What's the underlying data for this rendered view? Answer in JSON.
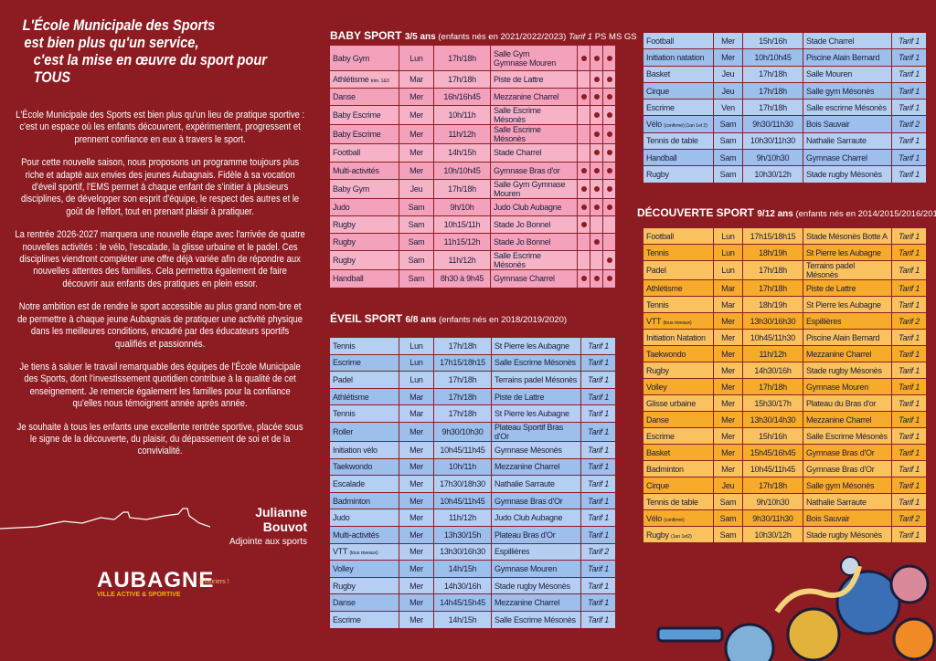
{
  "intro": {
    "title": [
      "L'École Municipale des Sports",
      "est bien plus qu'un service,",
      "c'est la mise en œuvre du sport pour TOUS"
    ],
    "paragraphs": [
      "L'École Municipale des Sports est bien plus qu'un lieu de pratique sportive : c'est un espace où les enfants découvrent, expérimentent, progressent et prennent confiance en eux à travers le sport.",
      "Pour cette nouvelle saison, nous proposons un programme toujours plus riche et adapté aux envies des jeunes Aubagnais. Fidèle à sa vocation d'éveil sportif, l'EMS permet à chaque enfant de s'initier à plusieurs disciplines, de développer son esprit d'équipe, le respect des autres et le goût de l'effort, tout en prenant plaisir à pratiquer.",
      "La rentrée 2026-2027 marquera une nouvelle étape avec l'arrivée de quatre nouvelles activités : le vélo, l'escalade, la glisse urbaine et le padel. Ces disciplines viendront compléter une offre déjà variée afin de répondre aux nouvelles attentes des familles. Cela permettra également de faire découvrir aux enfants des pratiques en plein essor.",
      "Notre ambition est de rendre le sport accessible au plus grand nom-bre et de permettre à chaque jeune Aubagnais de pratiquer une activité physique dans les meilleures conditions, encadré par des éducateurs sportifs qualifiés et passionnés.",
      "Je tiens à saluer le travail remarquable des équipes de l'École Municipale des Sports, dont l'investissement quotidien contribue à la qualité de cet enseignement. Je remercie également les familles pour la confiance qu'elles nous témoignent année après année.",
      "Je souhaite à tous les enfants une excellente rentrée sportive, placée sous le signe de la découverte, du plaisir, du dépassement de soi et de la convivialité."
    ],
    "signature": "Julianne Bouvot",
    "role": "Adjointe aux sports",
    "logo": {
      "name": "AUBAGNE",
      "tagline": "VILLE ACTIVE & SPORTIVE",
      "award": "3 lauriers !"
    }
  },
  "baby_sport": {
    "name": "BABY SPORT",
    "ages": "3/5 ans",
    "birth_years": "(enfants nés en 2021/2022/2023)",
    "tarif": "Tarif 1",
    "levels": [
      "PS",
      "MS",
      "GS"
    ],
    "rows": [
      {
        "activity": "Baby Gym",
        "day": "Lun",
        "time": "17h/18h",
        "place": "Salle Gym\nGymnase Mouren",
        "groups": [
          true,
          true,
          true
        ]
      },
      {
        "activity": "Athlétisme",
        "note": "trim. 1&3",
        "day": "Mar",
        "time": "17h/18h",
        "place": "Piste de Lattre",
        "groups": [
          false,
          true,
          true
        ]
      },
      {
        "activity": "Danse",
        "day": "Mer",
        "time": "16h/16h45",
        "place": "Mezzanine Charrel",
        "groups": [
          true,
          true,
          true
        ]
      },
      {
        "activity": "Baby Escrime",
        "day": "Mer",
        "time": "10h/11h",
        "place": "Salle Escrime Mésonès",
        "groups": [
          false,
          true,
          true
        ]
      },
      {
        "activity": "Baby Escrime",
        "day": "Mer",
        "time": "11h/12h",
        "place": "Salle Escrime Mésonès",
        "groups": [
          false,
          true,
          true
        ]
      },
      {
        "activity": "Football",
        "day": "Mer",
        "time": "14h/15h",
        "place": "Stade Charrel",
        "groups": [
          false,
          true,
          true
        ]
      },
      {
        "activity": "Multi-activités",
        "day": "Mer",
        "time": "10h/10h45",
        "place": "Gymnase Bras d'or",
        "groups": [
          true,
          true,
          true
        ]
      },
      {
        "activity": "Baby Gym",
        "day": "Jeu",
        "time": "17h/18h",
        "place": "Salle Gym Gymnase Mouren",
        "groups": [
          true,
          true,
          true
        ]
      },
      {
        "activity": "Judo",
        "day": "Sam",
        "time": "9h/10h",
        "place": "Judo Club Aubagne",
        "groups": [
          true,
          true,
          true
        ]
      },
      {
        "activity": "Rugby",
        "day": "Sam",
        "time": "10h15/11h",
        "place": "Stade Jo Bonnel",
        "groups": [
          true,
          false,
          false
        ]
      },
      {
        "activity": "Rugby",
        "day": "Sam",
        "time": "11h15/12h",
        "place": "Stade Jo Bonnel",
        "groups": [
          false,
          true,
          false
        ]
      },
      {
        "activity": "Rugby",
        "day": "Sam",
        "time": "11h/12h",
        "place": "Salle Escrime Mésonès",
        "groups": [
          false,
          false,
          true
        ]
      },
      {
        "activity": "Handball",
        "day": "Sam",
        "time": "8h30 à 9h45",
        "place": "Gymnase Charrel",
        "groups": [
          true,
          true,
          true
        ]
      }
    ]
  },
  "eveil_sport": {
    "name": "ÉVEIL SPORT",
    "ages": "6/8 ans",
    "birth_years": "(enfants nés en 2018/2019/2020)",
    "rows": [
      {
        "activity": "Tennis",
        "day": "Lun",
        "time": "17h/18h",
        "place": "St Pierre les Aubagne",
        "tarif": "Tarif 1"
      },
      {
        "activity": "Escrime",
        "day": "Lun",
        "time": "17h15/18h15",
        "place": "Salle Escrime Mésonès",
        "tarif": "Tarif 1"
      },
      {
        "activity": "Padel",
        "day": "Lun",
        "time": "17h/18h",
        "place": "Terrains padel Mésonès",
        "tarif": "Tarif 1"
      },
      {
        "activity": "Athlétisme",
        "day": "Mar",
        "time": "17h/18h",
        "place": "Piste de Lattre",
        "tarif": "Tarif 1"
      },
      {
        "activity": "Tennis",
        "day": "Mar",
        "time": "17h/18h",
        "place": "St Pierre les Aubagne",
        "tarif": "Tarif 1"
      },
      {
        "activity": "Roller",
        "day": "Mer",
        "time": "9h30/10h30",
        "place": "Plateau Sportif Bras d'Or",
        "tarif": "Tarif 1"
      },
      {
        "activity": "Initiation vélo",
        "day": "Mer",
        "time": "10h45/11h45",
        "place": "Gymnase Mésonès",
        "tarif": "Tarif 1"
      },
      {
        "activity": "Taekwondo",
        "day": "Mer",
        "time": "10h/11h",
        "place": "Mezzanine Charrel",
        "tarif": "Tarif 1"
      },
      {
        "activity": "Escalade",
        "day": "Mer",
        "time": "17h30/18h30",
        "place": "Nathalie Sarraute",
        "tarif": "Tarif 1"
      },
      {
        "activity": "Badminton",
        "day": "Mer",
        "time": "10h45/11h45",
        "place": "Gymnase Bras d'Or",
        "tarif": "Tarif 1"
      },
      {
        "activity": "Judo",
        "day": "Mer",
        "time": "11h/12h",
        "place": "Judo Club Aubagne",
        "tarif": "Tarif 1"
      },
      {
        "activity": "Multi-activités",
        "day": "Mer",
        "time": "13h30/15h",
        "place": "Plateau Bras d'Or",
        "tarif": "Tarif 1"
      },
      {
        "activity": "VTT",
        "note": "(tous niveaux)",
        "day": "Mer",
        "time": "13h30/16h30",
        "place": "Espillières",
        "tarif": "Tarif 2"
      },
      {
        "activity": "Volley",
        "day": "Mer",
        "time": "14h/15h",
        "place": "Gymnase Mouren",
        "tarif": "Tarif 1"
      },
      {
        "activity": "Rugby",
        "day": "Mer",
        "time": "14h30/16h",
        "place": "Stade rugby Mésonès",
        "tarif": "Tarif 1"
      },
      {
        "activity": "Danse",
        "day": "Mer",
        "time": "14h45/15h45",
        "place": "Mezzanine Charrel",
        "tarif": "Tarif 1"
      },
      {
        "activity": "Escrime",
        "day": "Mer",
        "time": "14h/15h",
        "place": "Salle Escrime Mésonès",
        "tarif": "Tarif 1"
      }
    ],
    "rows_continued": [
      {
        "activity": "Football",
        "day": "Mer",
        "time": "15h/16h",
        "place": "Stade Charrel",
        "tarif": "Tarif 1"
      },
      {
        "activity": "Initiation natation",
        "day": "Mer",
        "time": "10h/10h45",
        "place": "Piscine Alain Bernard",
        "tarif": "Tarif 1"
      },
      {
        "activity": "Basket",
        "day": "Jeu",
        "time": "17h/18h",
        "place": "Salle Mouren",
        "tarif": "Tarif 1"
      },
      {
        "activity": "Cirque",
        "day": "Jeu",
        "time": "17h/18h",
        "place": "Salle gym Mésonès",
        "tarif": "Tarif 1"
      },
      {
        "activity": "Escrime",
        "day": "Ven",
        "time": "17h/18h",
        "place": "Salle escrime Mésonès",
        "tarif": "Tarif 1"
      },
      {
        "activity": "Vélo",
        "note": "(confirmé) (1an 1et 2)",
        "day": "Sam",
        "time": "9h30/11h30",
        "place": "Bois Sauvair",
        "tarif": "Tarif 2"
      },
      {
        "activity": "Tennis de table",
        "day": "Sam",
        "time": "10h30/11h30",
        "place": "Nathalie Sarraute",
        "tarif": "Tarif 1"
      },
      {
        "activity": "Handball",
        "day": "Sam",
        "time": "9h/10h30",
        "place": "Gymnase Charrel",
        "tarif": "Tarif 1"
      },
      {
        "activity": "Rugby",
        "day": "Sam",
        "time": "10h30/12h",
        "place": "Stade rugby Mésonès",
        "tarif": "Tarif 1"
      }
    ]
  },
  "decouverte_sport": {
    "name": "DÉCOUVERTE SPORT",
    "ages": "9/12 ans",
    "birth_years": "(enfants nés en 2014/2015/2016/2017)",
    "rows": [
      {
        "activity": "Football",
        "day": "Lun",
        "time": "17h15/18h15",
        "place": "Stade Mésonès Botte A",
        "tarif": "Tarif 1"
      },
      {
        "activity": "Tennis",
        "day": "Lun",
        "time": "18h/19h",
        "place": "St Pierre les Aubagne",
        "tarif": "Tarif 1"
      },
      {
        "activity": "Padel",
        "day": "Lun",
        "time": "17h/18h",
        "place": "Terrains padel Mésonès",
        "tarif": "Tarif 1"
      },
      {
        "activity": "Athlétisme",
        "day": "Mar",
        "time": "17h/18h",
        "place": "Piste de Lattre",
        "tarif": "Tarif 1"
      },
      {
        "activity": "Tennis",
        "day": "Mar",
        "time": "18h/19h",
        "place": "St Pierre les Aubagne",
        "tarif": "Tarif 1"
      },
      {
        "activity": "VTT",
        "note": "(tous niveaux)",
        "day": "Mer",
        "time": "13h30/16h30",
        "place": "Espillières",
        "tarif": "Tarif 2"
      },
      {
        "activity": "Initiation Natation",
        "day": "Mer",
        "time": "10h45/11h30",
        "place": "Piscine Alain Bernard",
        "tarif": "Tarif 1"
      },
      {
        "activity": "Taekwondo",
        "day": "Mer",
        "time": "11h/12h",
        "place": "Mezzanine Charrel",
        "tarif": "Tarif 1"
      },
      {
        "activity": "Rugby",
        "day": "Mer",
        "time": "14h30/16h",
        "place": "Stade rugby Mésonès",
        "tarif": "Tarif 1"
      },
      {
        "activity": "Volley",
        "day": "Mer",
        "time": "17h/18h",
        "place": "Gymnase Mouren",
        "tarif": "Tarif 1"
      },
      {
        "activity": "Glisse urbaine",
        "day": "Mer",
        "time": "15h30/17h",
        "place": "Plateau du Bras d'or",
        "tarif": "Tarif 1"
      },
      {
        "activity": "Danse",
        "day": "Mer",
        "time": "13h30/14h30",
        "place": "Mezzanine Charrel",
        "tarif": "Tarif 1"
      },
      {
        "activity": "Escrime",
        "day": "Mer",
        "time": "15h/16h",
        "place": "Salle Escrime Mésonès",
        "tarif": "Tarif 1"
      },
      {
        "activity": "Basket",
        "day": "Mer",
        "time": "15h45/16h45",
        "place": "Gymnase Bras d'Or",
        "tarif": "Tarif 1"
      },
      {
        "activity": "Badminton",
        "day": "Mer",
        "time": "10h45/11h45",
        "place": "Gymnase Bras d'Or",
        "tarif": "Tarif 1"
      },
      {
        "activity": "Cirque",
        "day": "Jeu",
        "time": "17h/18h",
        "place": "Salle gym Mésonès",
        "tarif": "Tarif 1"
      },
      {
        "activity": "Tennis de table",
        "day": "Sam",
        "time": "9h/10h30",
        "place": "Nathalie Sarraute",
        "tarif": "Tarif 1"
      },
      {
        "activity": "Vélo",
        "note": "(confirmé)",
        "day": "Sam",
        "time": "9h30/11h30",
        "place": "Bois Sauvair",
        "tarif": "Tarif 2"
      },
      {
        "activity": "Rugby",
        "note": "(1an 1et2)",
        "day": "Sam",
        "time": "10h30/12h",
        "place": "Stade rugby Mésonès",
        "tarif": "Tarif 1"
      }
    ]
  }
}
